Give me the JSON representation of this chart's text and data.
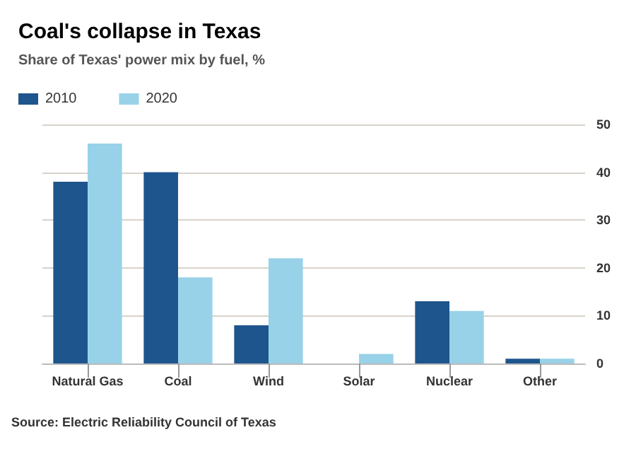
{
  "chart_data": {
    "type": "bar",
    "title": "Coal's collapse in Texas",
    "subtitle": "Share of Texas' power mix by fuel, %",
    "categories": [
      "Natural Gas",
      "Coal",
      "Wind",
      "Solar",
      "Nuclear",
      "Other"
    ],
    "series": [
      {
        "name": "2010",
        "color": "#1e558c",
        "values": [
          38,
          40,
          8,
          0,
          13,
          1
        ]
      },
      {
        "name": "2020",
        "color": "#98d2e8",
        "values": [
          46,
          18,
          22,
          2,
          11,
          1
        ]
      }
    ],
    "ylim": [
      0,
      50
    ],
    "yticks": [
      0,
      10,
      20,
      30,
      40,
      50
    ],
    "grid": "y",
    "legend": "top left",
    "annotations": [
      "Source: Electric Reliability Council of Texas"
    ]
  }
}
